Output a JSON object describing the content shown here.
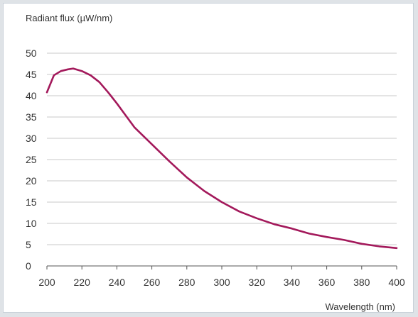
{
  "chart_data": {
    "type": "line",
    "title": "",
    "ylabel": "Radiant flux (µW/nm)",
    "xlabel": "Wavelength (nm)",
    "xlim": [
      200,
      400
    ],
    "ylim": [
      0,
      50
    ],
    "x_ticks": [
      "200",
      "220",
      "240",
      "260",
      "280",
      "300",
      "320",
      "340",
      "360",
      "380",
      "400"
    ],
    "y_ticks": [
      "0",
      "5",
      "10",
      "15",
      "20",
      "25",
      "30",
      "35",
      "40",
      "45",
      "50"
    ],
    "grid": true,
    "legend": "none",
    "line_color": "#a3195b",
    "series": [
      {
        "x": [
          200,
          204,
          208,
          212,
          215,
          220,
          225,
          230,
          235,
          240,
          245,
          250,
          255,
          260,
          265,
          270,
          280,
          290,
          300,
          310,
          320,
          330,
          340,
          350,
          360,
          370,
          380,
          390,
          400
        ],
        "values": [
          40.8,
          44.8,
          45.8,
          46.2,
          46.4,
          45.8,
          44.8,
          43.2,
          40.8,
          38.2,
          35.4,
          32.6,
          30.6,
          28.6,
          26.6,
          24.6,
          20.8,
          17.6,
          15.0,
          12.8,
          11.2,
          9.8,
          8.8,
          7.6,
          6.8,
          6.1,
          5.2,
          4.6,
          4.2
        ]
      }
    ]
  }
}
